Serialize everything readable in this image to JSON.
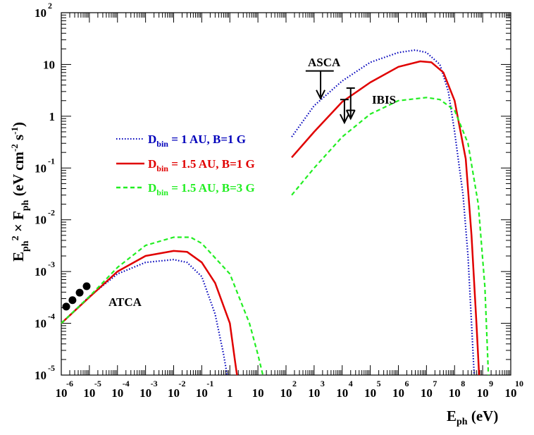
{
  "chart_data": {
    "type": "line",
    "xlabel": {
      "main": "E",
      "sub": "ph",
      "tail": " (eV)"
    },
    "ylabel": {
      "p1": "E",
      "s1": "ph",
      "sup1": "2",
      "p2": " × F",
      "s2": "ph",
      "p3": " (eV cm",
      "sup2": "-2",
      "p4": " s",
      "sup3": "-1",
      "p5": ")"
    },
    "x_scale": "log",
    "y_scale": "log",
    "xlim": [
      1e-06,
      10000000000.0
    ],
    "ylim": [
      1e-05,
      100
    ],
    "grid": false,
    "legend_position": "left",
    "x_ticks": [
      {
        "base": "10",
        "exp": "-6"
      },
      {
        "base": "10",
        "exp": "-5"
      },
      {
        "base": "10",
        "exp": "-4"
      },
      {
        "base": "10",
        "exp": "-3"
      },
      {
        "base": "10",
        "exp": "-2"
      },
      {
        "base": "10",
        "exp": "-1"
      },
      {
        "base": "1",
        "exp": ""
      },
      {
        "base": "10",
        "exp": ""
      },
      {
        "base": "10",
        "exp": "2"
      },
      {
        "base": "10",
        "exp": "3"
      },
      {
        "base": "10",
        "exp": "4"
      },
      {
        "base": "10",
        "exp": "5"
      },
      {
        "base": "10",
        "exp": "6"
      },
      {
        "base": "10",
        "exp": "7"
      },
      {
        "base": "10",
        "exp": "8"
      },
      {
        "base": "10",
        "exp": "9"
      },
      {
        "base": "10",
        "exp": "10"
      }
    ],
    "y_ticks": [
      {
        "base": "10",
        "exp": "-5"
      },
      {
        "base": "10",
        "exp": "-4"
      },
      {
        "base": "10",
        "exp": "-3"
      },
      {
        "base": "10",
        "exp": "-2"
      },
      {
        "base": "10",
        "exp": "-1"
      },
      {
        "base": "1",
        "exp": ""
      },
      {
        "base": "10",
        "exp": ""
      },
      {
        "base": "10",
        "exp": "2"
      }
    ],
    "series": [
      {
        "legend": {
          "prefix": "D",
          "sub": "bin",
          "suffix": " = 1 AU, B=1 G"
        },
        "color": "#0000bb",
        "dash": "dotted",
        "segments": [
          [
            [
              1e-06,
              0.0001
            ],
            [
              1e-05,
              0.00033
            ],
            [
              0.0001,
              0.0009
            ],
            [
              0.001,
              0.0015
            ],
            [
              0.01,
              0.0017
            ],
            [
              0.03,
              0.0015
            ],
            [
              0.1,
              0.0008
            ],
            [
              0.3,
              0.00015
            ],
            [
              0.6,
              2.5e-05
            ],
            [
              0.8,
              1e-05
            ]
          ],
          [
            [
              160.0,
              0.4
            ],
            [
              1000.0,
              1.6
            ],
            [
              10000.0,
              4.8
            ],
            [
              100000.0,
              11
            ],
            [
              1000000.0,
              17
            ],
            [
              4000000.0,
              19
            ],
            [
              10000000.0,
              17
            ],
            [
              30000000.0,
              10
            ],
            [
              60000000.0,
              3
            ],
            [
              100000000.0,
              0.5
            ],
            [
              200000000.0,
              0.03
            ],
            [
              300000000.0,
              0.002
            ],
            [
              400000000.0,
              0.0001
            ],
            [
              500000000.0,
              1e-05
            ]
          ]
        ]
      },
      {
        "legend": {
          "prefix": "D",
          "sub": "bin",
          "suffix": " = 1.5 AU, B=1 G"
        },
        "color": "#e00000",
        "dash": "solid",
        "segments": [
          [
            [
              1e-06,
              0.0001
            ],
            [
              1e-05,
              0.00032
            ],
            [
              0.0001,
              0.001
            ],
            [
              0.001,
              0.002
            ],
            [
              0.01,
              0.0025
            ],
            [
              0.03,
              0.0024
            ],
            [
              0.1,
              0.0015
            ],
            [
              0.3,
              0.0006
            ],
            [
              1.0,
              0.0001
            ],
            [
              1.5,
              2e-05
            ],
            [
              1.8,
              1e-05
            ]
          ],
          [
            [
              160.0,
              0.16
            ],
            [
              1000.0,
              0.5
            ],
            [
              10000.0,
              1.9
            ],
            [
              100000.0,
              4.5
            ],
            [
              1000000.0,
              9
            ],
            [
              6000000.0,
              11.5
            ],
            [
              15000000.0,
              11
            ],
            [
              40000000.0,
              7
            ],
            [
              100000000.0,
              2
            ],
            [
              250000000.0,
              0.15
            ],
            [
              400000000.0,
              0.005
            ],
            [
              600000000.0,
              0.0001
            ],
            [
              750000000.0,
              1e-05
            ]
          ]
        ]
      },
      {
        "legend": {
          "prefix": "D",
          "sub": "bin",
          "suffix": " = 1.5 AU, B=3 G"
        },
        "color": "#22ee22",
        "dash": "dashed",
        "segments": [
          [
            [
              1e-06,
              0.0001
            ],
            [
              1e-05,
              0.00033
            ],
            [
              0.0001,
              0.0012
            ],
            [
              0.001,
              0.0032
            ],
            [
              0.01,
              0.0046
            ],
            [
              0.04,
              0.0046
            ],
            [
              0.1,
              0.0035
            ],
            [
              1.0,
              0.0009
            ],
            [
              5.0,
              0.0001
            ],
            [
              10.0,
              2.5e-05
            ],
            [
              15.0,
              1e-05
            ]
          ],
          [
            [
              160.0,
              0.03
            ],
            [
              1000.0,
              0.1
            ],
            [
              10000.0,
              0.4
            ],
            [
              100000.0,
              1.1
            ],
            [
              1000000.0,
              2
            ],
            [
              10000000.0,
              2.3
            ],
            [
              30000000.0,
              2.1
            ],
            [
              100000000.0,
              1.3
            ],
            [
              300000000.0,
              0.3
            ],
            [
              700000000.0,
              0.02
            ],
            [
              1200000000.0,
              0.0005
            ],
            [
              1600000000.0,
              1e-05
            ]
          ]
        ]
      }
    ],
    "points": {
      "label": "ATCA",
      "values": [
        [
          1.5e-06,
          0.00021
        ],
        [
          2.5e-06,
          0.00028
        ],
        [
          4.5e-06,
          0.00039
        ],
        [
          8e-06,
          0.00052
        ]
      ]
    },
    "upper_limits": [
      {
        "label": "ASCA",
        "x_range": [
          500.0,
          5000.0
        ],
        "y": 7.5,
        "arrow_x": 1700.0,
        "arrow_to": 2.2
      },
      {
        "label": "IBIS",
        "x": 20000.0,
        "err": [
          1.3,
          3.5
        ],
        "arrow_to": 0.9
      },
      {
        "label": "",
        "x": 12000.0,
        "y": 2.1,
        "arrow_to": 0.75
      }
    ]
  }
}
